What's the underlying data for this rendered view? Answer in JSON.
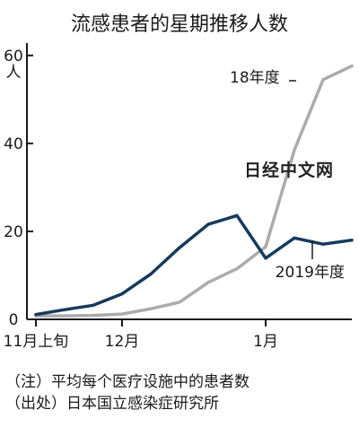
{
  "chart_data": {
    "type": "line",
    "title": "流感患者的星期推移人数",
    "unit_label": "人",
    "ylim": [
      0,
      62
    ],
    "yticks": [
      0,
      20,
      40,
      60
    ],
    "xlim": [
      0,
      12
    ],
    "xticks": [
      {
        "x": 0,
        "label": "11月上旬"
      },
      {
        "x": 3,
        "label": "12月"
      },
      {
        "x": 8,
        "label": "1月"
      }
    ],
    "grid": false,
    "series": [
      {
        "name": "18年度",
        "color": "#ababab",
        "x": [
          0,
          1,
          2,
          3,
          4,
          5,
          6,
          7,
          8,
          9,
          10,
          11
        ],
        "y": [
          0.8,
          0.8,
          0.9,
          1.2,
          2.4,
          3.9,
          8.4,
          11.5,
          16.5,
          38.5,
          54.5,
          57.6
        ]
      },
      {
        "name": "2019年度",
        "color": "#173a5c",
        "x": [
          0,
          1,
          2,
          3,
          4,
          5,
          6,
          7,
          8,
          9,
          10,
          11
        ],
        "y": [
          1.1,
          2.2,
          3.2,
          5.8,
          10.3,
          16.3,
          21.6,
          23.6,
          13.9,
          18.5,
          17.1,
          18.0
        ]
      }
    ]
  },
  "notes": {
    "note_label": "（注）",
    "note_text": "平均每个医疗设施中的患者数",
    "source_label": "（出处）",
    "source_text": "日本国立感染症研究所"
  },
  "watermark": "日经中文网"
}
